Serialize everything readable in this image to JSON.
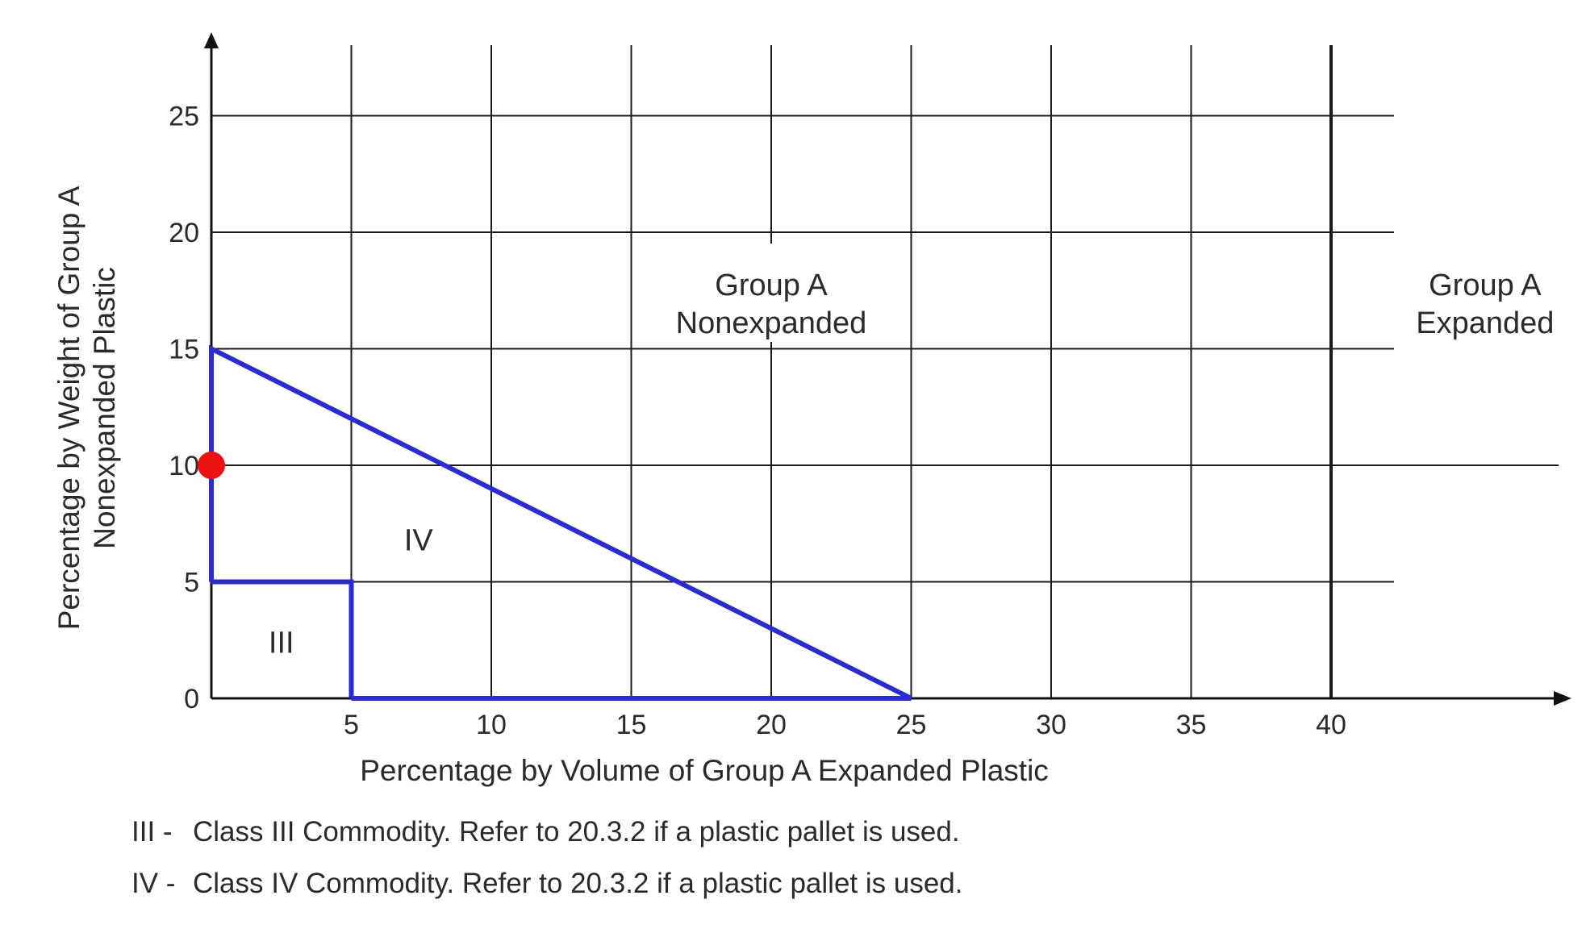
{
  "chart_data": {
    "type": "line",
    "title": "",
    "xlabel": "Percentage by Volume of Group A Expanded Plastic",
    "ylabel_lines": [
      "Percentage by Weight of Group A",
      "Nonexpanded Plastic"
    ],
    "xlim": [
      0,
      42
    ],
    "ylim": [
      0,
      25
    ],
    "x_ticks": [
      "5",
      "10",
      "15",
      "20",
      "25",
      "30",
      "35",
      "40"
    ],
    "y_ticks": [
      "0",
      "5",
      "10",
      "15",
      "20",
      "25"
    ],
    "grid": true,
    "series": [
      {
        "values": [
          [
            0,
            5
          ],
          [
            5,
            5
          ],
          [
            5,
            0
          ]
        ],
        "color": "#2b2bcf"
      },
      {
        "values": [
          [
            0,
            5
          ],
          [
            0,
            15
          ],
          [
            25,
            0
          ],
          [
            5,
            0
          ]
        ],
        "color": "#2b2bcf"
      }
    ],
    "marker_point": {
      "x": 0,
      "y": 10,
      "color": "#ee1111"
    },
    "region_labels": [
      {
        "text": "III",
        "x": 2.5,
        "y": 2.4
      },
      {
        "text": "IV",
        "x": 7.4,
        "y": 6.8
      }
    ],
    "region_titles": [
      {
        "lines": [
          "Group A",
          "Nonexpanded"
        ],
        "x": 20,
        "y": 17.3
      },
      {
        "lines": [
          "Group A",
          "Expanded"
        ],
        "x": 45.5,
        "y": 17.3
      }
    ],
    "boundary_line": {
      "x": 40
    }
  },
  "notes": [
    {
      "code": "III -",
      "text": "Class III Commodity. Refer to 20.3.2 if a plastic pallet is used."
    },
    {
      "code": "IV -",
      "text": "Class IV Commodity. Refer to 20.3.2 if a plastic pallet is used."
    }
  ]
}
